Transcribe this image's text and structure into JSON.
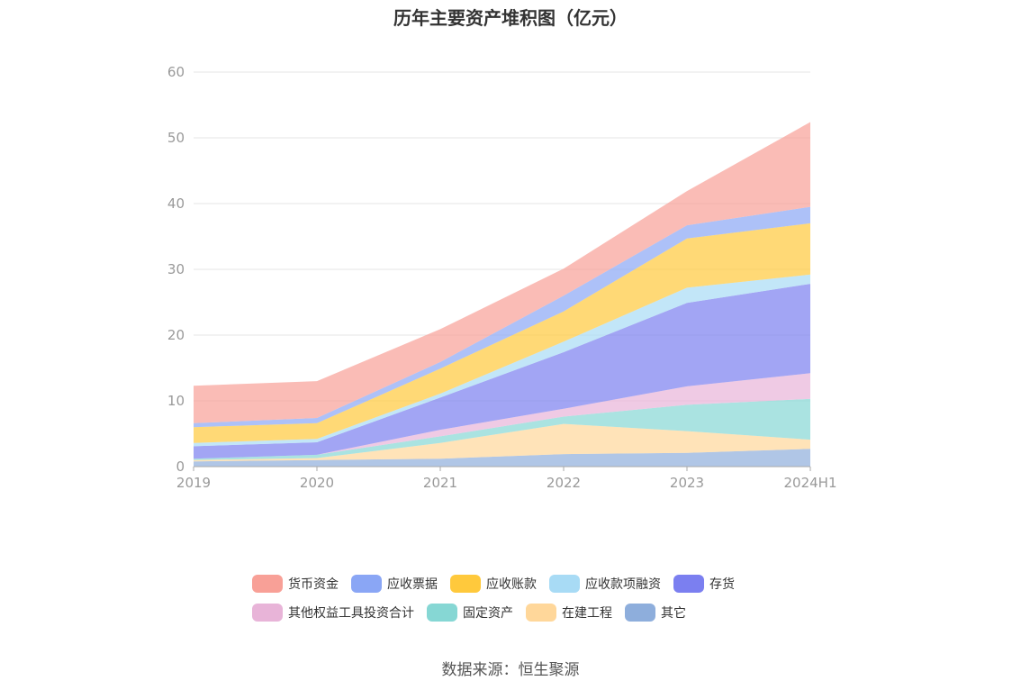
{
  "chart_data": {
    "type": "area",
    "stacked": true,
    "title": "历年主要资产堆积图（亿元）",
    "x": [
      "2019",
      "2020",
      "2021",
      "2022",
      "2023",
      "2024H1"
    ],
    "ylim": [
      0,
      60
    ],
    "yticks": [
      0,
      10,
      20,
      30,
      40,
      50,
      60
    ],
    "grid": true,
    "legend_position": "bottom",
    "series": [
      {
        "name": "其它",
        "color": "#8eaedc",
        "values": [
          0.8,
          1.0,
          1.2,
          1.9,
          2.1,
          2.7
        ]
      },
      {
        "name": "在建工程",
        "color": "#ffd79a",
        "values": [
          0.2,
          0.3,
          2.4,
          4.6,
          3.3,
          1.4
        ]
      },
      {
        "name": "固定资产",
        "color": "#86d7d4",
        "values": [
          0.2,
          0.5,
          1.0,
          1.1,
          4.0,
          6.2
        ]
      },
      {
        "name": "其他权益工具投资合计",
        "color": "#e8b4d8",
        "values": [
          0.0,
          0.0,
          1.0,
          1.2,
          2.8,
          3.9
        ]
      },
      {
        "name": "存货",
        "color": "#7b7ff0",
        "values": [
          1.9,
          1.9,
          4.9,
          8.6,
          12.7,
          13.6
        ]
      },
      {
        "name": "应收款项融资",
        "color": "#a8dbf5",
        "values": [
          0.5,
          0.5,
          0.6,
          1.6,
          2.3,
          1.4
        ]
      },
      {
        "name": "应收账款",
        "color": "#ffc93c",
        "values": [
          2.4,
          2.4,
          3.8,
          4.6,
          7.5,
          7.8
        ]
      },
      {
        "name": "应收票据",
        "color": "#8aa6f5",
        "values": [
          0.6,
          0.8,
          1.0,
          2.4,
          2.0,
          2.5
        ]
      },
      {
        "name": "货币资金",
        "color": "#f8a097",
        "values": [
          5.7,
          5.6,
          5.0,
          4.1,
          5.2,
          12.9
        ]
      }
    ]
  },
  "legend_swatch_colors": [
    "#f8a097",
    "#8aa6f5",
    "#ffc93c",
    "#a8dbf5",
    "#7b7ff0",
    "#e8b4d8",
    "#86d7d4",
    "#ffd79a",
    "#8eaedc"
  ],
  "legend_rows": [
    [
      "货币资金",
      "应收票据",
      "应收账款",
      "应收款项融资",
      "存货"
    ],
    [
      "其他权益工具投资合计",
      "固定资产",
      "在建工程",
      "其它"
    ]
  ],
  "source": "数据来源：恒生聚源"
}
